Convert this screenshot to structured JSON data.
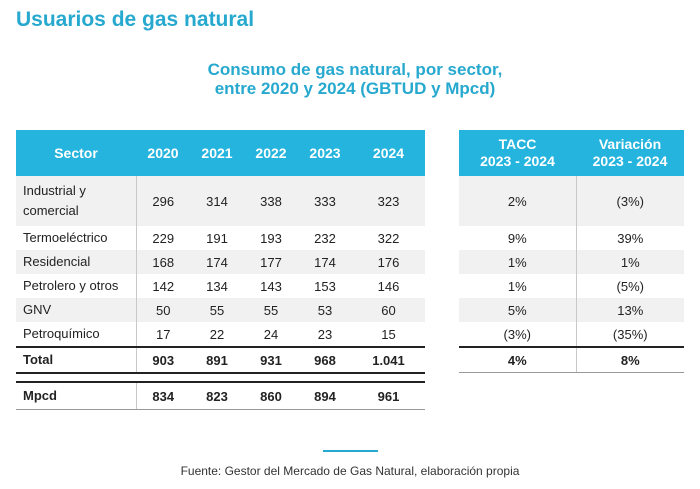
{
  "page_title": "Usuarios de gas natural",
  "subtitle_line1": "Consumo de gas natural, por sector,",
  "subtitle_line2": "entre 2020 y 2024 (GBTUD y Mpcd)",
  "main_headers": [
    "Sector",
    "2020",
    "2021",
    "2022",
    "2023",
    "2024"
  ],
  "side_headers": [
    {
      "line1": "TACC",
      "line2": "2023 - 2024"
    },
    {
      "line1": "Variación",
      "line2": "2023 - 2024"
    }
  ],
  "rows": [
    {
      "sector": "Industrial y comercial",
      "values": [
        "296",
        "314",
        "338",
        "333",
        "323"
      ],
      "tacc": "2%",
      "variacion": "(3%)"
    },
    {
      "sector": "Termoeléctrico",
      "values": [
        "229",
        "191",
        "193",
        "232",
        "322"
      ],
      "tacc": "9%",
      "variacion": "39%"
    },
    {
      "sector": "Residencial",
      "values": [
        "168",
        "174",
        "177",
        "174",
        "176"
      ],
      "tacc": "1%",
      "variacion": "1%"
    },
    {
      "sector": "Petrolero y otros",
      "values": [
        "142",
        "134",
        "143",
        "153",
        "146"
      ],
      "tacc": "1%",
      "variacion": "(5%)"
    },
    {
      "sector": "GNV",
      "values": [
        "50",
        "55",
        "55",
        "53",
        "60"
      ],
      "tacc": "5%",
      "variacion": "13%"
    },
    {
      "sector": "Petroquímico",
      "values": [
        "17",
        "22",
        "24",
        "23",
        "15"
      ],
      "tacc": "(3%)",
      "variacion": "(35%)"
    }
  ],
  "total": {
    "label": "Total",
    "values": [
      "903",
      "891",
      "931",
      "968",
      "1.041"
    ],
    "tacc": "4%",
    "variacion": "8%"
  },
  "mpcd": {
    "label": "Mpcd",
    "values": [
      "834",
      "823",
      "860",
      "894",
      "961"
    ]
  },
  "source": "Fuente: Gestor del Mercado de Gas Natural, elaboración propia",
  "colors": {
    "accent": "#27a9cf",
    "header_bg": "#25b4dd",
    "row_shade": "#f1f1f1"
  }
}
